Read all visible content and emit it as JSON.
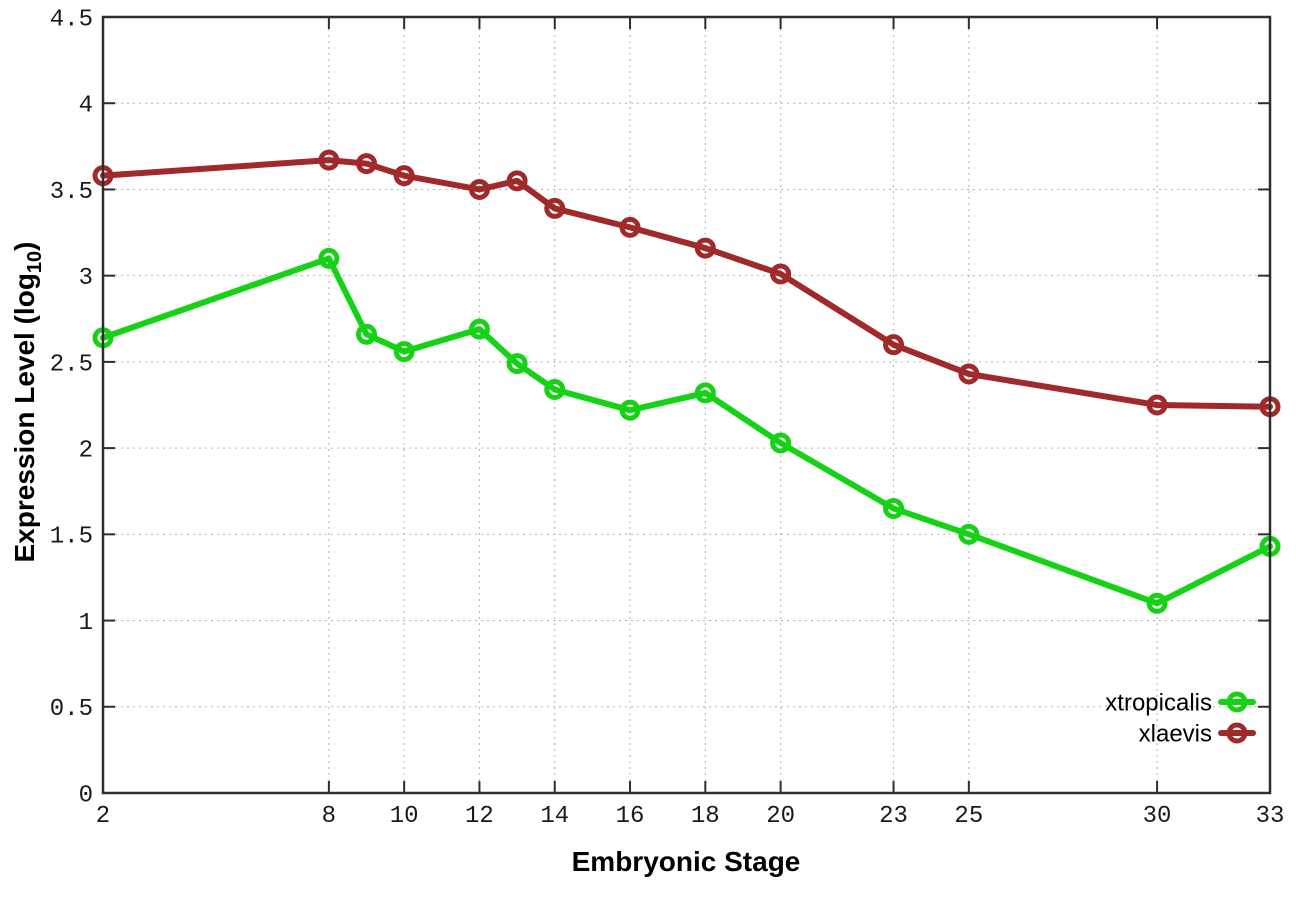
{
  "chart_data": {
    "type": "line",
    "title": "",
    "xlabel": "Embryonic Stage",
    "ylabel_prefix": "Expression Level (log",
    "ylabel_sub": "10",
    "ylabel_suffix": ")",
    "x": [
      2,
      8,
      9,
      10,
      12,
      13,
      14,
      16,
      18,
      20,
      23,
      25,
      30,
      33
    ],
    "x_tick_labels": [
      2,
      8,
      10,
      12,
      14,
      16,
      18,
      20,
      23,
      25,
      30,
      33
    ],
    "y_ticks": [
      0,
      0.5,
      1,
      1.5,
      2,
      2.5,
      3,
      3.5,
      4,
      4.5
    ],
    "xlim": [
      2,
      33
    ],
    "ylim": [
      0,
      4.5
    ],
    "grid": true,
    "grid_style": "dotted",
    "legend_position": "bottom-right",
    "marker": "open-circle",
    "series": [
      {
        "name": "xtropicalis",
        "color": "#16d216",
        "values": [
          2.64,
          3.1,
          2.66,
          2.56,
          2.69,
          2.49,
          2.34,
          2.22,
          2.32,
          2.03,
          1.65,
          1.5,
          1.1,
          1.43
        ]
      },
      {
        "name": "xlaevis",
        "color": "#a02a2a",
        "values": [
          3.58,
          3.67,
          3.65,
          3.58,
          3.5,
          3.55,
          3.39,
          3.28,
          3.16,
          3.01,
          2.6,
          2.43,
          2.25,
          2.24
        ]
      }
    ],
    "axis_color": "#2e2e2e",
    "grid_color": "#b4b4b4"
  }
}
